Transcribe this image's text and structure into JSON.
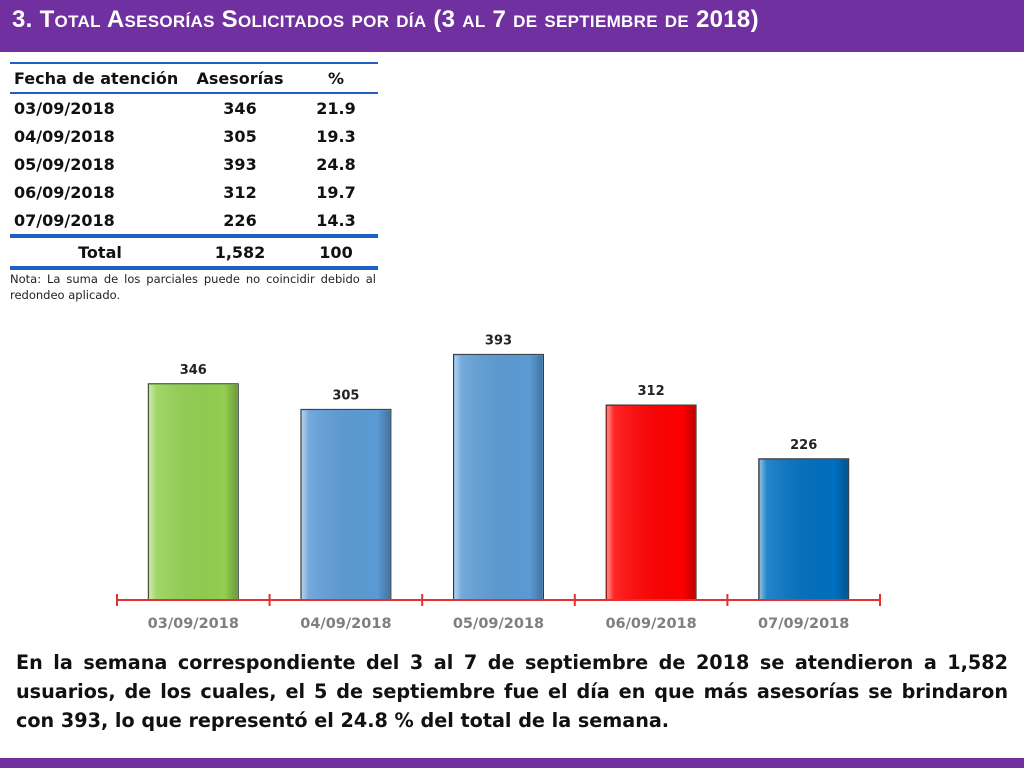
{
  "header": {
    "title": "3.  Total Asesorías Solicitados por día  (3 al 7 de septiembre de 2018)"
  },
  "table": {
    "headers": [
      "Fecha de atención",
      "Asesorías",
      "%"
    ],
    "rows": [
      {
        "date": "03/09/2018",
        "count": "346",
        "pct": "21.9"
      },
      {
        "date": "04/09/2018",
        "count": "305",
        "pct": "19.3"
      },
      {
        "date": "05/09/2018",
        "count": "393",
        "pct": "24.8"
      },
      {
        "date": "06/09/2018",
        "count": "312",
        "pct": "19.7"
      },
      {
        "date": "07/09/2018",
        "count": "226",
        "pct": "14.3"
      }
    ],
    "total": {
      "label": "Total",
      "count": "1,582",
      "pct": "100"
    }
  },
  "note": "Nota: La suma de los parciales puede no coincidir debido al redondeo aplicado.",
  "chart_data": {
    "type": "bar",
    "categories": [
      "03/09/2018",
      "04/09/2018",
      "05/09/2018",
      "06/09/2018",
      "07/09/2018"
    ],
    "values": [
      346,
      305,
      393,
      312,
      226
    ],
    "colors": [
      "#92d050",
      "#5b9bd5",
      "#5b9bd5",
      "#ff0000",
      "#0070c0"
    ],
    "axis_color": "#e03030",
    "data_labels": true,
    "grid": false,
    "legend": "none"
  },
  "summary": "En la semana correspondiente del 3 al 7 de septiembre de 2018 se atendieron a 1,582 usuarios, de los cuales, el 5 de septiembre fue el día en que más asesorías se brindaron con 393, lo que representó el 24.8 % del total de la semana."
}
